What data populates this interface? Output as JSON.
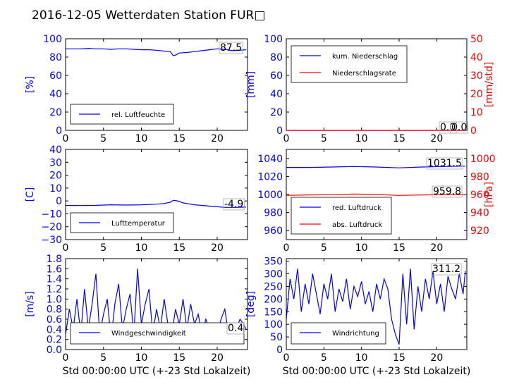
{
  "figure": {
    "title": "2016-12-05 Wetterdaten Station FUR□"
  },
  "colors": {
    "blue": "#0000ff",
    "red": "#ff0000",
    "black": "#000000"
  },
  "chart_data": [
    {
      "id": "humidity",
      "type": "line",
      "ylabel": "[%]",
      "xlim": [
        0,
        24
      ],
      "ylim": [
        0,
        100
      ],
      "xticks": [
        "0",
        "5",
        "10",
        "15",
        "20"
      ],
      "yticks": [
        "0",
        "20",
        "40",
        "60",
        "80",
        "100"
      ],
      "legend": [
        "rel. Luftfeuchte"
      ],
      "current_value": "87.5",
      "series": [
        {
          "name": "rel. Luftfeuchte",
          "color": "#0000ff",
          "x": [
            0,
            1,
            2,
            3,
            4,
            5,
            6,
            7,
            8,
            9,
            10,
            11,
            12,
            13,
            13.8,
            14.2,
            14.6,
            15,
            16,
            17,
            18,
            19,
            20,
            21,
            22,
            23,
            23.8
          ],
          "y": [
            89,
            89,
            89,
            89.5,
            89,
            89,
            88.5,
            89,
            89,
            88.5,
            88,
            88,
            87.5,
            86.5,
            86,
            81.5,
            82.5,
            84.5,
            85,
            86,
            87,
            88,
            89,
            88.5,
            87,
            87.5,
            88
          ]
        }
      ]
    },
    {
      "id": "rain",
      "type": "line",
      "ylabel": "[mm]",
      "ylabel_right": "[mm/std]",
      "xlim": [
        0,
        24
      ],
      "ylim": [
        0,
        100
      ],
      "ylim_right": [
        0,
        50
      ],
      "xticks": [
        "0",
        "5",
        "10",
        "15",
        "20"
      ],
      "yticks": [
        "0",
        "20",
        "40",
        "60",
        "80",
        "100"
      ],
      "yticks_right": [
        "0",
        "10",
        "20",
        "30",
        "40",
        "50"
      ],
      "legend": [
        "kum. Niederschlag",
        "Niederschlagsrate"
      ],
      "current_value": "0.0",
      "current_value_2": "0.0",
      "series": [
        {
          "name": "kum. Niederschlag",
          "color": "#0000ff",
          "x": [
            0,
            23.8
          ],
          "y": [
            0,
            0
          ]
        },
        {
          "name": "Niederschlagsrate",
          "color": "#ff0000",
          "x": [
            0,
            23.8
          ],
          "y": [
            0,
            0
          ],
          "axis": "right"
        }
      ]
    },
    {
      "id": "temperature",
      "type": "line",
      "ylabel": "[C]",
      "xlim": [
        0,
        24
      ],
      "ylim": [
        -30,
        40
      ],
      "xticks": [
        "0",
        "5",
        "10",
        "15",
        "20"
      ],
      "yticks": [
        "−30",
        "−20",
        "−10",
        "0",
        "10",
        "20",
        "30",
        "40"
      ],
      "legend": [
        "Lufttemperatur"
      ],
      "current_value": "-4.9",
      "series": [
        {
          "name": "Lufttemperatur",
          "color": "#0000ff",
          "x": [
            0,
            2,
            4,
            6,
            8,
            10,
            12,
            13,
            13.8,
            14.2,
            14.8,
            15.5,
            16,
            17,
            18,
            19,
            20,
            21,
            22,
            23,
            23.8
          ],
          "y": [
            -3.5,
            -3.6,
            -3.4,
            -3,
            -3.2,
            -3,
            -2.5,
            -2,
            -1,
            0.5,
            0,
            -1.5,
            -2,
            -3,
            -3.5,
            -4,
            -4.5,
            -5,
            -5,
            -4.9,
            -4.8
          ]
        }
      ]
    },
    {
      "id": "pressure",
      "type": "line",
      "ylabel_right": "[hPa]",
      "xlim": [
        0,
        24
      ],
      "ylim": [
        950,
        1050
      ],
      "ylim_right": [
        910,
        1010
      ],
      "xticks": [
        "0",
        "5",
        "10",
        "15",
        "20"
      ],
      "yticks": [
        "960",
        "980",
        "1000",
        "1020",
        "1040"
      ],
      "yticks_right": [
        "920",
        "940",
        "960",
        "980",
        "1000"
      ],
      "legend": [
        "red. Luftdruck",
        "abs. Luftdruck"
      ],
      "current_value": "1031.5",
      "current_value_2": "959.8",
      "series": [
        {
          "name": "red. Luftdruck",
          "color": "#0000ff",
          "x": [
            0,
            3,
            6,
            9,
            12,
            15,
            18,
            21,
            23.8
          ],
          "y": [
            1030,
            1030,
            1030.5,
            1031,
            1030.5,
            1029.5,
            1030.5,
            1031,
            1031.5
          ]
        },
        {
          "name": "abs. Luftdruck",
          "color": "#ff0000",
          "axis": "right",
          "x": [
            0,
            3,
            6,
            9,
            12,
            15,
            18,
            21,
            23.8
          ],
          "y": [
            959,
            959.5,
            959.8,
            960.5,
            960,
            959,
            959.5,
            959.8,
            959.8
          ]
        }
      ]
    },
    {
      "id": "wind_speed",
      "type": "line",
      "ylabel": "[m/s]",
      "xlabel": "Std 00:00:00 UTC (+-23 Std Lokalzeit)",
      "xlim": [
        0,
        24
      ],
      "ylim": [
        0,
        1.8
      ],
      "xticks": [
        "0",
        "5",
        "10",
        "15",
        "20"
      ],
      "yticks": [
        "0.0",
        "0.2",
        "0.4",
        "0.6",
        "0.8",
        "1.0",
        "1.2",
        "1.4",
        "1.6",
        "1.8"
      ],
      "legend": [
        "Windgeschwindigkeit"
      ],
      "current_value": "0.4",
      "series": [
        {
          "name": "Windgeschwindigkeit",
          "color": "#0000ff",
          "x": [
            0,
            0.5,
            1,
            1.5,
            2,
            2.5,
            3,
            3.5,
            4,
            4.5,
            5,
            5.5,
            6,
            6.5,
            7,
            7.5,
            8,
            8.5,
            9,
            9.5,
            10,
            10.5,
            11,
            11.5,
            12,
            12.5,
            13,
            13.5,
            14,
            14.5,
            15,
            15.5,
            16,
            16.5,
            17,
            17.5,
            18,
            18.5,
            19,
            19.5,
            20,
            20.5,
            21,
            21.5,
            22,
            22.5,
            23,
            23.5,
            23.8
          ],
          "y": [
            0.3,
            0.8,
            0.4,
            1.0,
            0.3,
            1.2,
            0.4,
            0.9,
            1.5,
            0.3,
            0.7,
            1.0,
            0.2,
            0.9,
            1.3,
            0.4,
            0.8,
            1.1,
            0.3,
            1.6,
            0.5,
            0.9,
            1.2,
            0.3,
            0.8,
            0.4,
            1.0,
            0.5,
            0.3,
            0.8,
            0.5,
            1.0,
            0.4,
            0.9,
            0.5,
            0.7,
            0.3,
            0.6,
            0.4,
            0.5,
            0.3,
            0.6,
            0.8,
            0.3,
            0.5,
            0.4,
            0.6,
            0.5,
            0.4
          ]
        }
      ]
    },
    {
      "id": "wind_direction",
      "type": "line",
      "ylabel": "[deg]",
      "xlabel": "Std 00:00:00 UTC (+-23 Std Lokalzeit)",
      "xlim": [
        0,
        24
      ],
      "ylim": [
        0,
        360
      ],
      "xticks": [
        "0",
        "5",
        "10",
        "15",
        "20"
      ],
      "yticks": [
        "0",
        "50",
        "100",
        "150",
        "200",
        "250",
        "300",
        "350"
      ],
      "legend": [
        "Windrichtung"
      ],
      "current_value": "311.2",
      "series": [
        {
          "name": "Windrichtung",
          "color": "#0000ff",
          "x": [
            0,
            0.5,
            1,
            1.5,
            2,
            2.5,
            3,
            3.5,
            4,
            4.5,
            5,
            5.5,
            6,
            6.5,
            7,
            7.5,
            8,
            8.5,
            9,
            9.5,
            10,
            10.5,
            11,
            11.5,
            12,
            12.5,
            13,
            13.5,
            14,
            14.5,
            15,
            15.5,
            16,
            16.5,
            17,
            17.5,
            18,
            18.5,
            19,
            19.5,
            20,
            20.5,
            21,
            21.5,
            22,
            22.5,
            23,
            23.5,
            23.8
          ],
          "y": [
            120,
            280,
            200,
            320,
            150,
            260,
            180,
            300,
            220,
            140,
            260,
            200,
            300,
            150,
            240,
            190,
            280,
            160,
            250,
            210,
            270,
            180,
            230,
            150,
            260,
            200,
            280,
            240,
            120,
            60,
            20,
            300,
            100,
            320,
            80,
            250,
            150,
            280,
            200,
            310,
            180,
            260,
            150,
            290,
            240,
            200,
            300,
            220,
            311
          ]
        }
      ]
    }
  ]
}
